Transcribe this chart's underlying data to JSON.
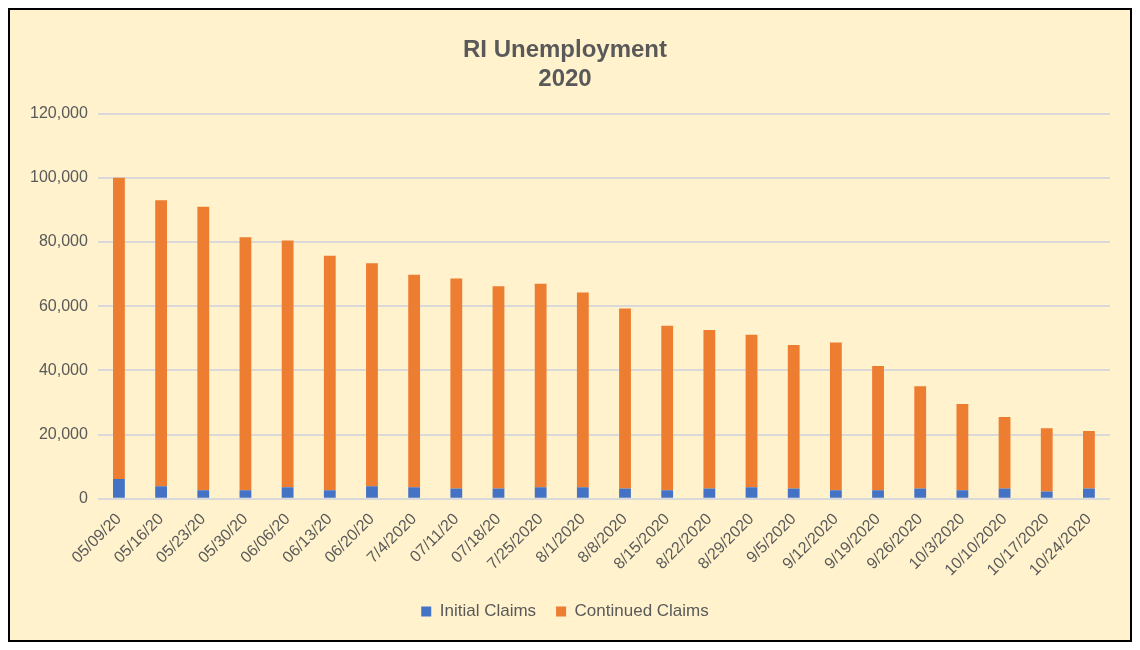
{
  "chart_data": {
    "type": "bar",
    "title": "RI Unemployment\n2020",
    "stacked": true,
    "categories": [
      "05/09/20",
      "05/16/20",
      "05/23/20",
      "05/30/20",
      "06/06/20",
      "06/13/20",
      "06/20/20",
      "7/4/2020",
      "07/11/20",
      "07/18/20",
      "7/25/2020",
      "8/1/2020",
      "8/8/2020",
      "8/15/2020",
      "8/22/2020",
      "8/29/2020",
      "9/5/2020",
      "9/12/2020",
      "9/19/2020",
      "9/26/2020",
      "10/3/2020",
      "10/10/2020",
      "10/17/2020",
      "10/24/2020"
    ],
    "series": [
      {
        "name": "Initial Claims",
        "color": "#4472c4",
        "values": [
          6200,
          3900,
          2700,
          2700,
          3600,
          2700,
          3900,
          3600,
          3200,
          3200,
          3600,
          3600,
          3200,
          2700,
          3200,
          3600,
          3200,
          2700,
          2700,
          3200,
          2700,
          3200,
          2300,
          3200
        ]
      },
      {
        "name": "Continued Claims",
        "color": "#ed7d31",
        "values": [
          93800,
          89100,
          88300,
          78800,
          76900,
          73000,
          69500,
          66200,
          65400,
          63000,
          63400,
          60700,
          56100,
          51200,
          49400,
          47500,
          44700,
          46000,
          38700,
          31900,
          26800,
          22300,
          19700,
          17900
        ]
      }
    ],
    "ylim": [
      0,
      120000
    ],
    "yticks": [
      {
        "value": 0,
        "label": "0"
      },
      {
        "value": 20000,
        "label": "20,000"
      },
      {
        "value": 40000,
        "label": "40,000"
      },
      {
        "value": 60000,
        "label": "60,000"
      },
      {
        "value": 80000,
        "label": "80,000"
      },
      {
        "value": 100000,
        "label": "100,000"
      },
      {
        "value": 120000,
        "label": "120,000"
      }
    ],
    "grid": "y",
    "legend": "bottom"
  }
}
